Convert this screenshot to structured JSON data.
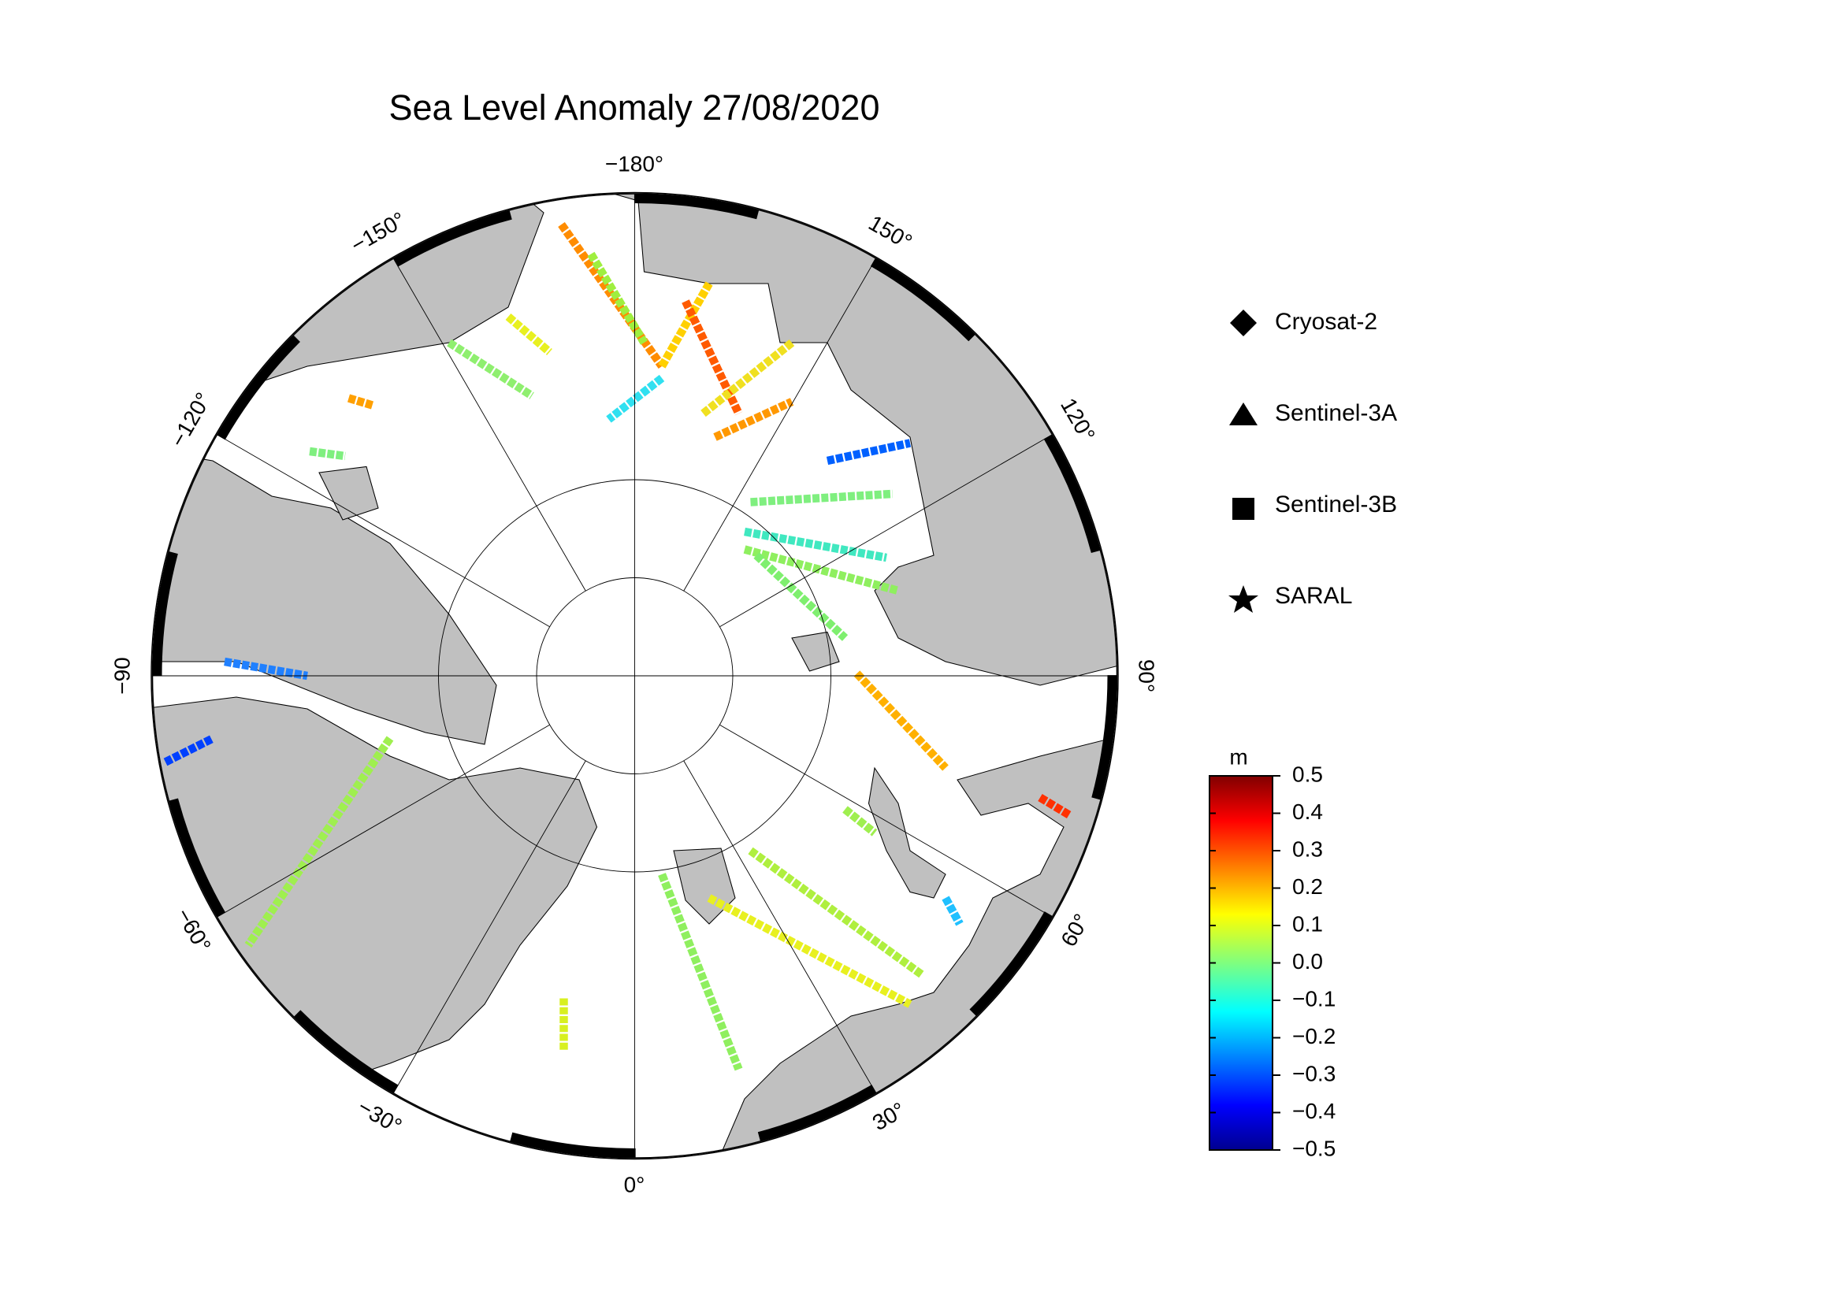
{
  "title": "Sea Level Anomaly 27/08/2020",
  "map": {
    "longitude_labels": [
      {
        "value": -180,
        "label": "−180°"
      },
      {
        "value": 150,
        "label": "150°"
      },
      {
        "value": 120,
        "label": "120°"
      },
      {
        "value": 90,
        "label": "90°"
      },
      {
        "value": 60,
        "label": "60°"
      },
      {
        "value": 30,
        "label": "30°"
      },
      {
        "value": 0,
        "label": "0°"
      },
      {
        "value": -30,
        "label": "−30°"
      },
      {
        "value": -60,
        "label": "−60°"
      },
      {
        "value": -90,
        "label": "−90"
      },
      {
        "value": -120,
        "label": "−120°"
      },
      {
        "value": -150,
        "label": "−150°"
      }
    ]
  },
  "legend": {
    "items": [
      "Cryosat-2",
      "Sentinel-3A",
      "Sentinel-3B",
      "SARAL"
    ]
  },
  "colorbar": {
    "unit": "m",
    "lim": [
      -0.5,
      0.5
    ],
    "ticks": [
      0.5,
      0.4,
      0.3,
      0.2,
      0.1,
      {
        "value": 0,
        "label": "0.0"
      },
      {
        "value": -0.1,
        "label": "−0.1"
      },
      {
        "value": -0.2,
        "label": "−0.2"
      },
      {
        "value": -0.3,
        "label": "−0.3"
      },
      {
        "value": -0.4,
        "label": "−0.4"
      },
      {
        "value": -0.5,
        "label": "−0.5"
      }
    ]
  }
}
